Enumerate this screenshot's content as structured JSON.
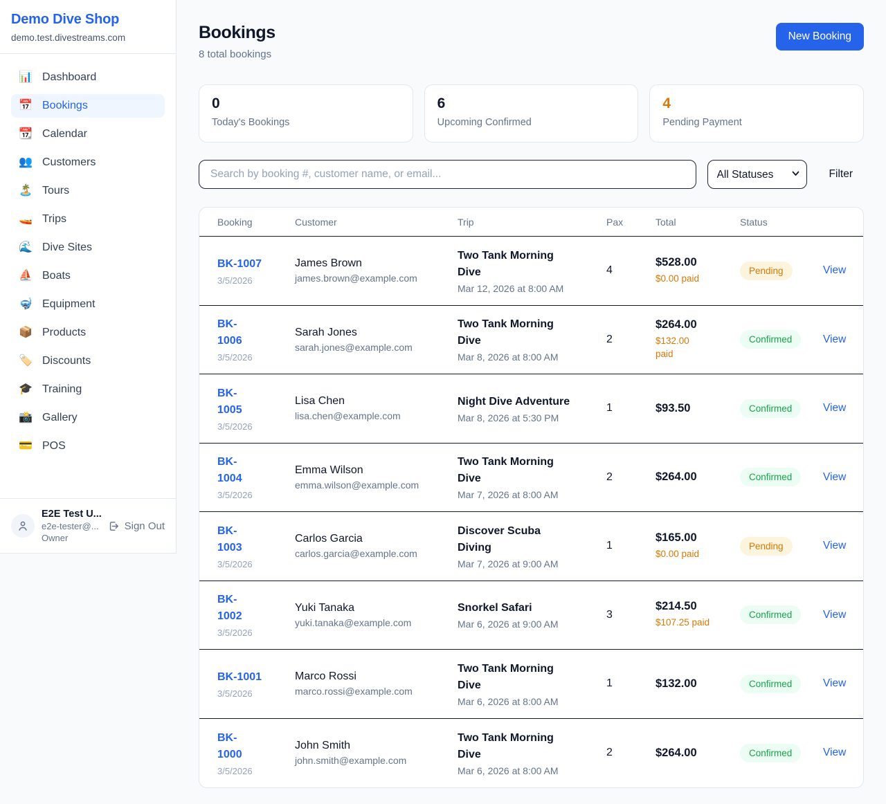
{
  "app": {
    "name": "Demo Dive Shop",
    "domain": "demo.test.divestreams.com"
  },
  "sidebar": {
    "items": [
      {
        "label": "Dashboard",
        "icon": "📊",
        "icon_name": "bar-chart-icon",
        "active": false
      },
      {
        "label": "Bookings",
        "icon": "📅",
        "icon_name": "calendar-date-icon",
        "active": true
      },
      {
        "label": "Calendar",
        "icon": "📆",
        "icon_name": "tear-off-calendar-icon",
        "active": false
      },
      {
        "label": "Customers",
        "icon": "👥",
        "icon_name": "people-icon",
        "active": false
      },
      {
        "label": "Tours",
        "icon": "🏝️",
        "icon_name": "island-icon",
        "active": false
      },
      {
        "label": "Trips",
        "icon": "🚤",
        "icon_name": "speedboat-icon",
        "active": false
      },
      {
        "label": "Dive Sites",
        "icon": "🌊",
        "icon_name": "wave-icon",
        "active": false
      },
      {
        "label": "Boats",
        "icon": "⛵",
        "icon_name": "sailboat-icon",
        "active": false
      },
      {
        "label": "Equipment",
        "icon": "🤿",
        "icon_name": "diving-mask-icon",
        "active": false
      },
      {
        "label": "Products",
        "icon": "📦",
        "icon_name": "package-icon",
        "active": false
      },
      {
        "label": "Discounts",
        "icon": "🏷️",
        "icon_name": "tag-icon",
        "active": false
      },
      {
        "label": "Training",
        "icon": "🎓",
        "icon_name": "graduation-cap-icon",
        "active": false
      },
      {
        "label": "Gallery",
        "icon": "📸",
        "icon_name": "camera-flash-icon",
        "active": false
      },
      {
        "label": "POS",
        "icon": "💳",
        "icon_name": "credit-card-icon",
        "active": false
      }
    ],
    "user": {
      "name": "E2E Test U...",
      "email": "e2e-tester@...",
      "role": "Owner",
      "sign_out_label": "Sign Out"
    }
  },
  "header": {
    "title": "Bookings",
    "subtitle": "8 total bookings",
    "new_booking_label": "New Booking"
  },
  "stats": [
    {
      "value": "0",
      "label": "Today's Bookings",
      "highlight": false
    },
    {
      "value": "6",
      "label": "Upcoming Confirmed",
      "highlight": false
    },
    {
      "value": "4",
      "label": "Pending Payment",
      "highlight": true
    }
  ],
  "filters": {
    "search_placeholder": "Search by booking #, customer name, or email...",
    "status_selected": "All Statuses",
    "filter_label": "Filter"
  },
  "table": {
    "columns": [
      "Booking",
      "Customer",
      "Trip",
      "Pax",
      "Total",
      "Status"
    ],
    "view_label": "View",
    "rows": [
      {
        "id": "BK-1007",
        "id_two_lines": false,
        "date": "3/5/2026",
        "customer": "James Brown",
        "email": "james.brown@example.com",
        "trip": "Two Tank Morning Dive",
        "trip_date": "Mar 12, 2026 at 8:00 AM",
        "pax": "4",
        "total": "$528.00",
        "paid": "$0.00 paid",
        "paid_two_lines": false,
        "status": "Pending"
      },
      {
        "id": "BK-1006",
        "id_two_lines": true,
        "date": "3/5/2026",
        "customer": "Sarah Jones",
        "email": "sarah.jones@example.com",
        "trip": "Two Tank Morning Dive",
        "trip_date": "Mar 8, 2026 at 8:00 AM",
        "pax": "2",
        "total": "$264.00",
        "paid": "$132.00 paid",
        "paid_two_lines": true,
        "status": "Confirmed"
      },
      {
        "id": "BK-1005",
        "id_two_lines": true,
        "date": "3/5/2026",
        "customer": "Lisa Chen",
        "email": "lisa.chen@example.com",
        "trip": "Night Dive Adventure",
        "trip_date": "Mar 8, 2026 at 5:30 PM",
        "pax": "1",
        "total": "$93.50",
        "paid": "",
        "paid_two_lines": false,
        "status": "Confirmed"
      },
      {
        "id": "BK-1004",
        "id_two_lines": true,
        "date": "3/5/2026",
        "customer": "Emma Wilson",
        "email": "emma.wilson@example.com",
        "trip": "Two Tank Morning Dive",
        "trip_date": "Mar 7, 2026 at 8:00 AM",
        "pax": "2",
        "total": "$264.00",
        "paid": "",
        "paid_two_lines": false,
        "status": "Confirmed"
      },
      {
        "id": "BK-1003",
        "id_two_lines": true,
        "date": "3/5/2026",
        "customer": "Carlos Garcia",
        "email": "carlos.garcia@example.com",
        "trip": "Discover Scuba Diving",
        "trip_date": "Mar 7, 2026 at 9:00 AM",
        "pax": "1",
        "total": "$165.00",
        "paid": "$0.00 paid",
        "paid_two_lines": false,
        "status": "Pending"
      },
      {
        "id": "BK-1002",
        "id_two_lines": true,
        "date": "3/5/2026",
        "customer": "Yuki Tanaka",
        "email": "yuki.tanaka@example.com",
        "trip": "Snorkel Safari",
        "trip_date": "Mar 6, 2026 at 9:00 AM",
        "pax": "3",
        "total": "$214.50",
        "paid": "$107.25 paid",
        "paid_two_lines": false,
        "status": "Confirmed"
      },
      {
        "id": "BK-1001",
        "id_two_lines": false,
        "date": "3/5/2026",
        "customer": "Marco Rossi",
        "email": "marco.rossi@example.com",
        "trip": "Two Tank Morning Dive",
        "trip_date": "Mar 6, 2026 at 8:00 AM",
        "pax": "1",
        "total": "$132.00",
        "paid": "",
        "paid_two_lines": false,
        "status": "Confirmed"
      },
      {
        "id": "BK-1000",
        "id_two_lines": true,
        "date": "3/5/2026",
        "customer": "John Smith",
        "email": "john.smith@example.com",
        "trip": "Two Tank Morning Dive",
        "trip_date": "Mar 6, 2026 at 8:00 AM",
        "pax": "2",
        "total": "$264.00",
        "paid": "",
        "paid_two_lines": false,
        "status": "Confirmed"
      }
    ]
  },
  "colors": {
    "accent_blue": "#2563eb",
    "pending_text": "#d97706",
    "pending_bg": "#fdf4dd",
    "confirmed_text": "#16a34a",
    "confirmed_bg": "#ecfdf3",
    "page_bg": "#f8fafc",
    "card_border": "#e2e8f0",
    "row_divider": "#111827"
  }
}
